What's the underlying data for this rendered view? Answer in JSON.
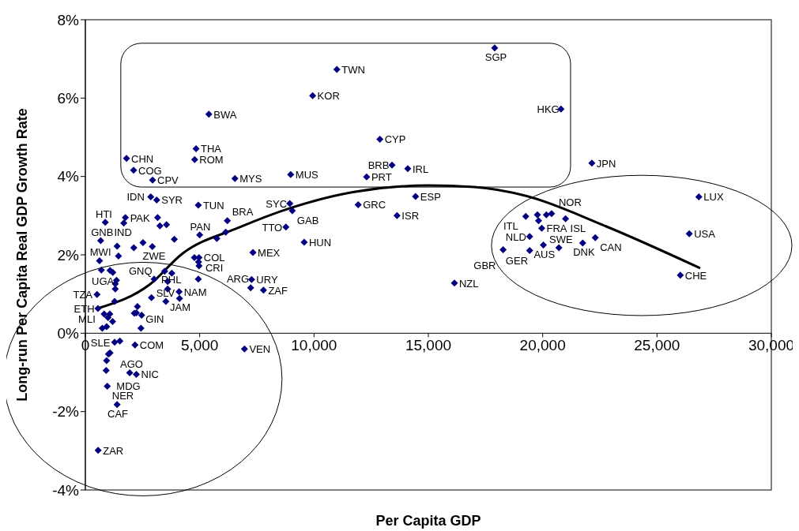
{
  "chart_data": {
    "type": "scatter",
    "xlabel": "Per Capita GDP",
    "ylabel": "Long-run Per Capita Real GDP Growth Rate",
    "xlim": [
      0,
      30000
    ],
    "xticks": [
      0,
      {
        "value": 5000,
        "label": "5,000"
      },
      {
        "value": 10000,
        "label": "10,000"
      },
      {
        "value": 15000,
        "label": "15,000"
      },
      {
        "value": 20000,
        "label": "20,000"
      },
      {
        "value": 25000,
        "label": "25,000"
      },
      {
        "value": 30000,
        "label": "30,000"
      }
    ],
    "ylim": [
      -4,
      8
    ],
    "yticks": [
      {
        "value": -4,
        "label": "-4%"
      },
      {
        "value": -2,
        "label": "-2%"
      },
      {
        "value": 0,
        "label": "0%"
      },
      {
        "value": 2,
        "label": "2%"
      },
      {
        "value": 4,
        "label": "4%"
      },
      {
        "value": 6,
        "label": "6%"
      },
      {
        "value": 8,
        "label": "8%"
      }
    ],
    "line_style": "solid",
    "series": [
      {
        "color": "#000080",
        "marker": "diamond",
        "x": [
          17900,
          11000,
          9940,
          20800,
          5400,
          12880,
          4840,
          1800,
          4780,
          22150,
          13410,
          14100,
          2110,
          8980,
          12300,
          6540,
          2940,
          14440,
          26830,
          2860,
          3120,
          8940,
          11930,
          4940,
          9050,
          20390,
          13630,
          19260,
          1750,
          6210,
          870,
          21000,
          8770,
          19960,
          26410,
          5000,
          19430,
          22300,
          670,
          9570,
          21750,
          20030,
          1680,
          20710,
          1450,
          2930,
          19430,
          18270,
          7330,
          4970,
          620,
          700,
          26020,
          4940,
          3010,
          7270,
          16140,
          7230,
          7790,
          4100,
          510,
          4120,
          3520,
          550,
          740,
          2430,
          1280,
          2170,
          6960,
          1940,
          910,
          2230,
          960,
          1390,
          560,
          3160,
          3260,
          3550,
          3890,
          6140,
          5750,
          1390,
          2520,
          2120,
          1080,
          1200,
          1360,
          1310,
          1310,
          1280,
          820,
          1070,
          990,
          1190,
          930,
          2280,
          2140,
          2230,
          2460,
          2890,
          3470,
          3780,
          3600,
          3600,
          4770,
          4950,
          4970,
          19770,
          19820,
          20160,
          1510,
          1080,
          1010,
          930
        ],
        "values": [
          7.28,
          6.73,
          6.06,
          5.72,
          5.59,
          4.95,
          4.71,
          4.46,
          4.43,
          4.34,
          4.29,
          4.2,
          4.16,
          4.05,
          3.99,
          3.95,
          3.91,
          3.49,
          3.48,
          3.48,
          3.4,
          3.31,
          3.28,
          3.27,
          3.13,
          3.05,
          3.0,
          2.98,
          2.95,
          2.87,
          2.83,
          2.92,
          2.71,
          2.68,
          2.54,
          2.51,
          2.47,
          2.44,
          2.36,
          2.32,
          2.3,
          2.25,
          2.81,
          2.18,
          1.97,
          2.21,
          2.11,
          2.13,
          2.06,
          1.93,
          1.85,
          1.61,
          1.48,
          1.38,
          1.38,
          1.37,
          1.28,
          1.16,
          1.1,
          1.06,
          0.99,
          0.89,
          0.81,
          0.63,
          0.13,
          0.13,
          -0.23,
          -0.3,
          -0.4,
          -1.01,
          -0.95,
          -1.05,
          -1.35,
          -1.82,
          -2.99,
          2.95,
          2.74,
          2.77,
          2.4,
          2.58,
          2.42,
          2.22,
          2.31,
          2.18,
          1.6,
          1.55,
          1.35,
          1.26,
          1.13,
          0.81,
          0.49,
          0.49,
          0.4,
          0.3,
          0.17,
          0.68,
          0.51,
          0.52,
          0.46,
          0.91,
          1.58,
          1.53,
          1.32,
          1.13,
          1.93,
          1.82,
          1.72,
          3.02,
          2.87,
          3.02,
          -0.2,
          -0.5,
          -0.53,
          -0.7
        ],
        "value_labels": [
          "SGP",
          "TWN",
          "KOR",
          "HKG",
          "BWA",
          "CYP",
          "THA",
          "CHN",
          "ROM",
          "JPN",
          "BRB",
          "IRL",
          "COG",
          "MUS",
          "PRT",
          "MYS",
          "CPV",
          "ESP",
          "LUX",
          "IDN",
          "SYR",
          "SYC",
          "GRC",
          "TUN",
          "GAB",
          "NOR",
          "ISR",
          "ITL",
          "PAK",
          "BRA",
          "HTI",
          "ISL",
          "TTO",
          "FRA",
          "USA",
          "PAN",
          "NLD",
          "CAN",
          "GNB",
          "HUN",
          "DNK",
          "AUS",
          "IND",
          "SWE",
          "GNQ",
          "ZWE",
          "GER",
          "GBR",
          "MEX",
          "COL",
          "MWI",
          "UGA",
          "CHE",
          "CRI",
          "PHL",
          "URY",
          "NZL",
          "ARG",
          "ZAF",
          "NAM",
          "TZA",
          "JAM",
          "SLV",
          "ETH",
          "MLI",
          "GIN",
          "SLE",
          "COM",
          "VEN",
          "AGO",
          "MDG",
          "NIC",
          "NER",
          "CAF",
          "ZAR",
          null,
          null,
          null,
          null,
          null,
          null,
          null,
          null,
          null,
          null,
          null,
          null,
          null,
          null,
          null,
          null,
          null,
          null,
          null,
          null,
          null,
          null,
          null,
          null,
          null,
          null,
          null,
          null,
          null,
          null,
          null,
          null,
          null,
          null,
          null,
          null,
          null,
          null,
          null
        ]
      },
      {
        "type": "line",
        "color": "#000000",
        "x": [
          530,
          2830,
          4220,
          6690,
          9000,
          11700,
          15000,
          17000,
          19300,
          22760,
          26850
        ],
        "values": [
          0.63,
          1.25,
          2.02,
          2.69,
          3.2,
          3.6,
          3.77,
          3.73,
          3.5,
          2.73,
          1.67
        ]
      }
    ]
  }
}
